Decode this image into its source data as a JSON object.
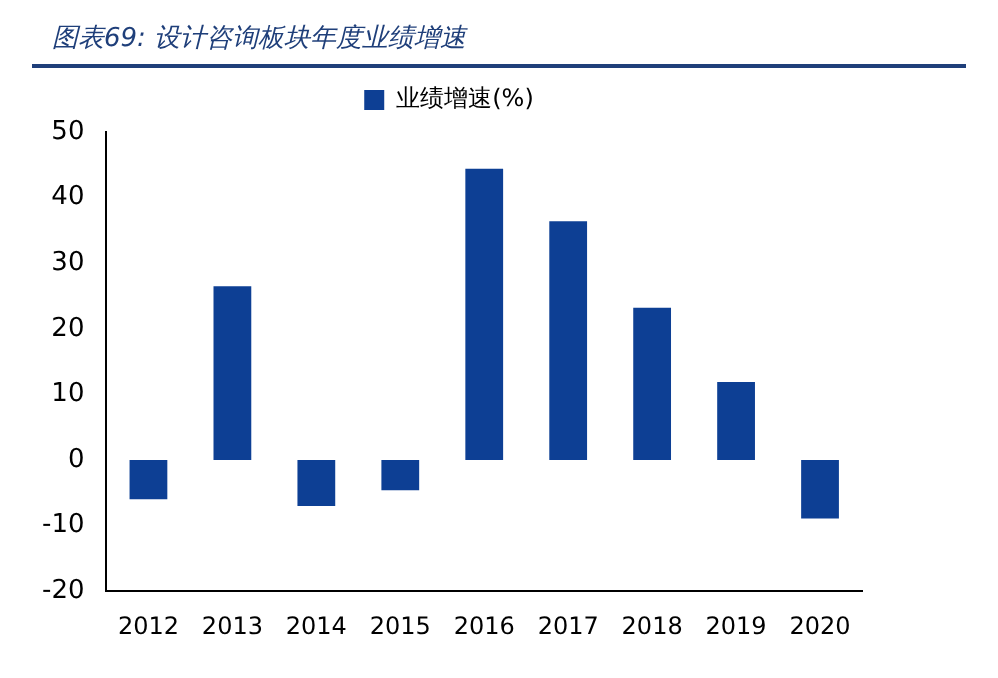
{
  "chart_data": {
    "type": "bar",
    "title": "图表69: 设计咨询板块年度业绩增速",
    "categories": [
      "2012",
      "2013",
      "2014",
      "2015",
      "2016",
      "2017",
      "2018",
      "2019",
      "2020"
    ],
    "series": [
      {
        "name": "业绩增速(%)",
        "color": "#0d3f94",
        "values": [
          -6,
          26.5,
          -7,
          -4.6,
          44.4,
          36.4,
          23.2,
          11.9,
          -8.9
        ]
      }
    ],
    "ylim": [
      -20,
      50
    ],
    "yticks": [
      -20,
      -10,
      0,
      10,
      20,
      30,
      40,
      50
    ],
    "grid": false,
    "legend": "top"
  }
}
